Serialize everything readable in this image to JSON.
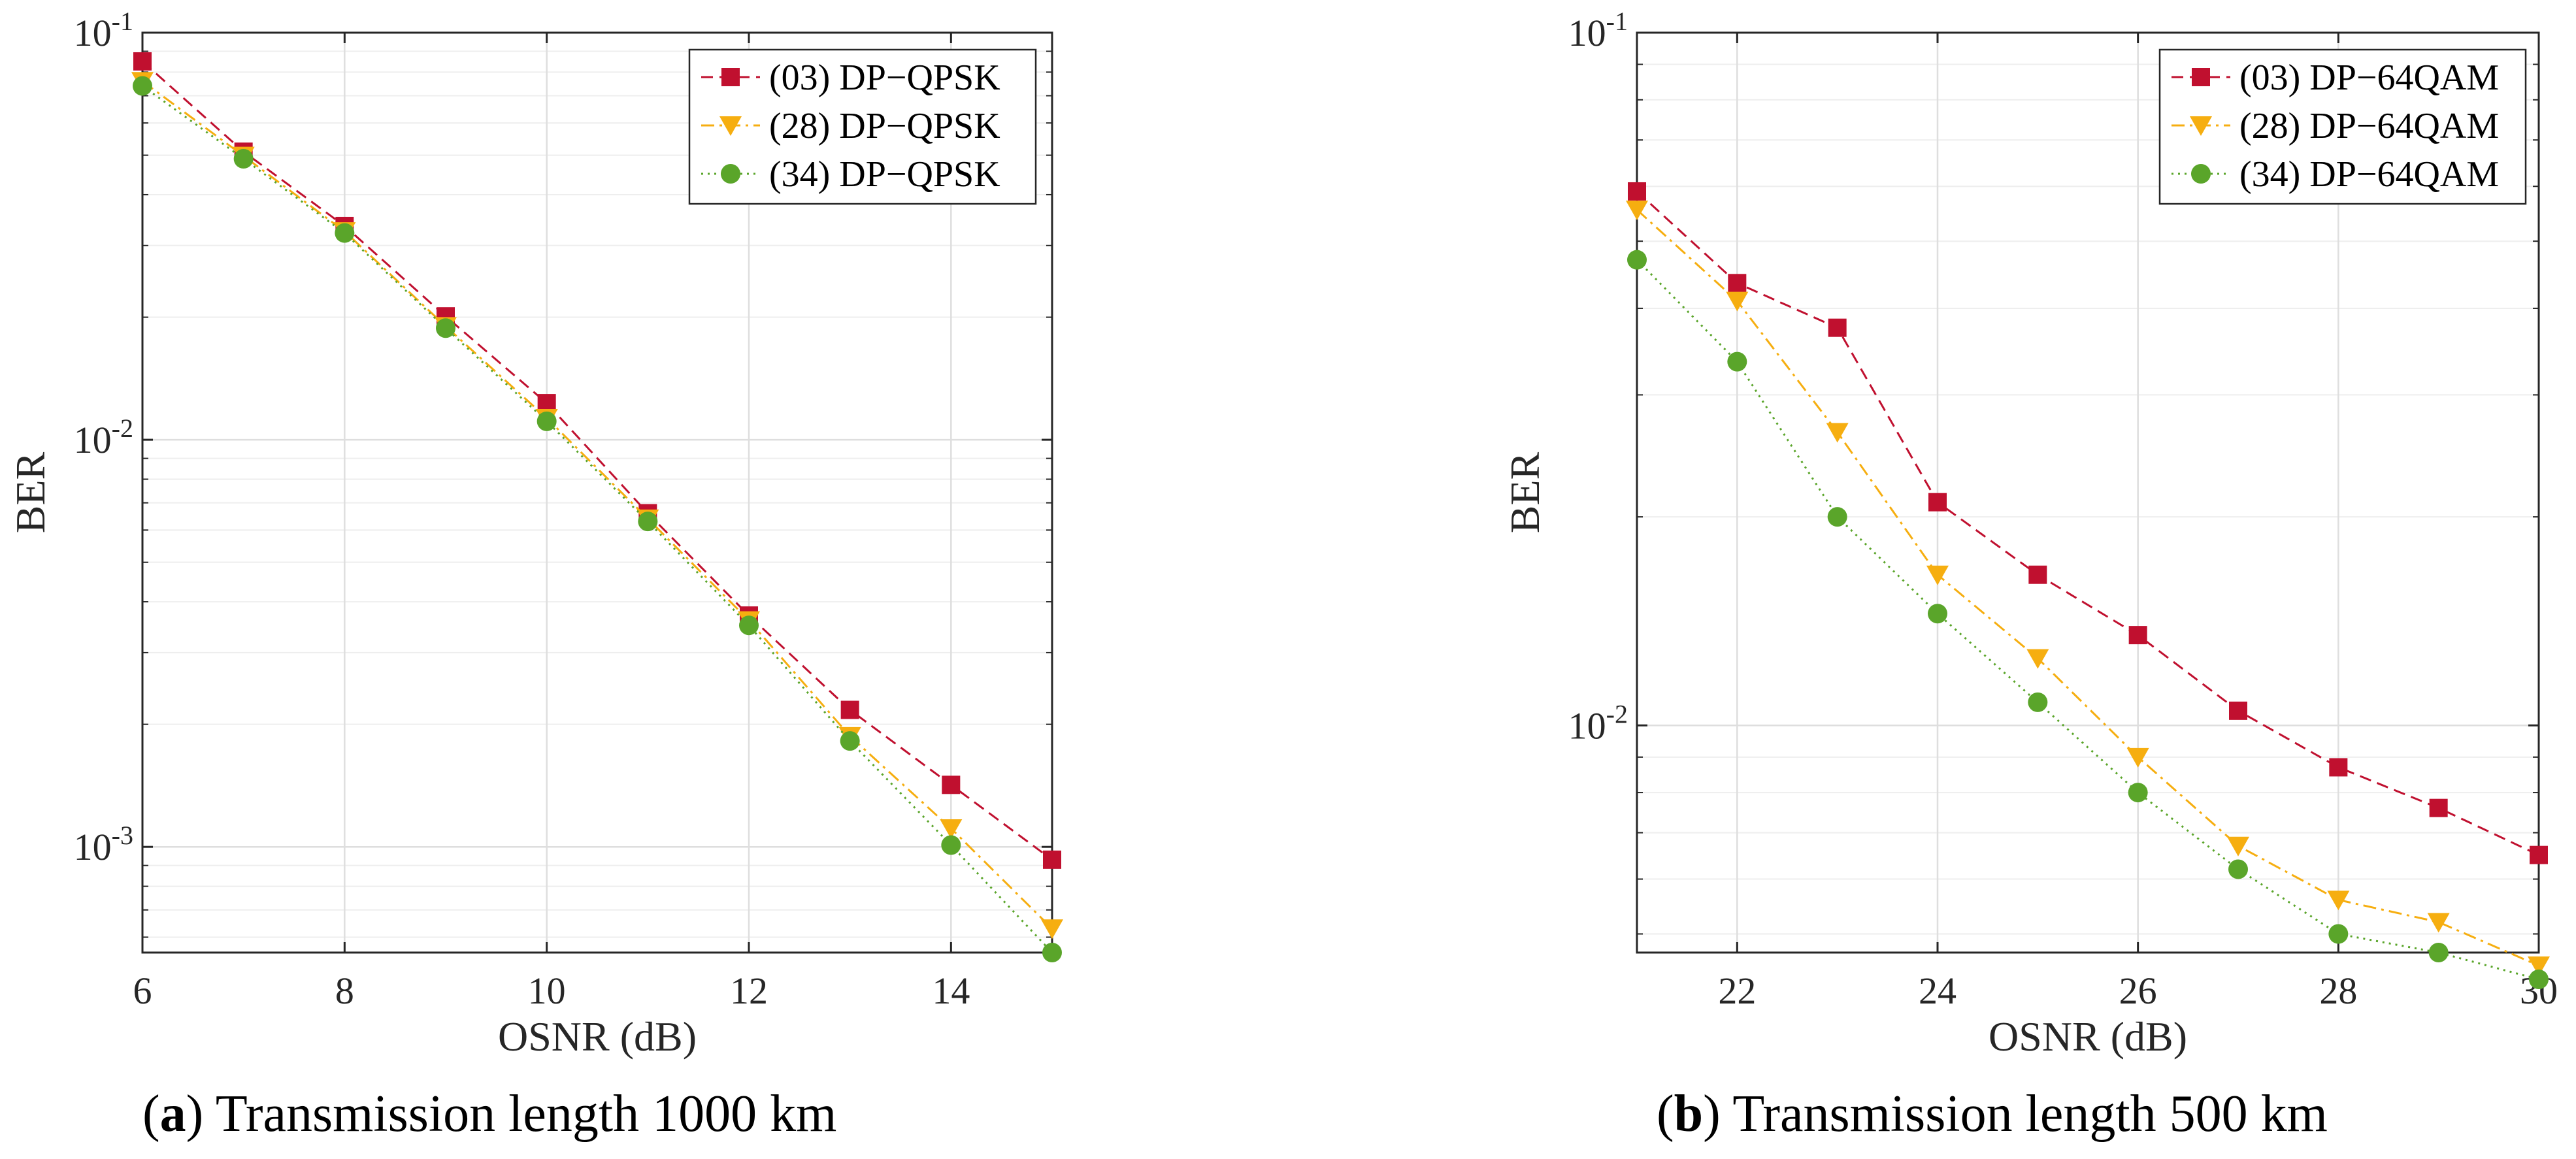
{
  "chart_data": [
    {
      "type": "line",
      "panel_label": "a",
      "caption": "Transmission length 1000 km",
      "xlabel": "OSNR (dB)",
      "ylabel": "BER",
      "yscale": "log",
      "xlim": [
        6,
        15
      ],
      "ylim": [
        0.00055,
        0.1
      ],
      "xticks": [
        6,
        8,
        10,
        12,
        14
      ],
      "yticks": [
        {
          "value": 0.1,
          "base": "10",
          "exp": "-1"
        },
        {
          "value": 0.01,
          "base": "10",
          "exp": "-2"
        },
        {
          "value": 0.001,
          "base": "10",
          "exp": "-3"
        }
      ],
      "grid": true,
      "legend_position": "top-right",
      "series": [
        {
          "name": "(03) DP−QPSK",
          "color": "#C0102F",
          "marker": "square",
          "dash": "dashed",
          "x": [
            6,
            7,
            8,
            9,
            10,
            11,
            12,
            13,
            14,
            15
          ],
          "y": [
            0.085,
            0.051,
            0.0335,
            0.0201,
            0.0123,
            0.0066,
            0.0037,
            0.00217,
            0.00142,
            0.00093
          ]
        },
        {
          "name": "(28) DP−QPSK",
          "color": "#F6AE10",
          "marker": "triangle-down",
          "dash": "dashdot",
          "x": [
            6,
            7,
            8,
            9,
            10,
            11,
            12,
            13,
            14,
            15
          ],
          "y": [
            0.076,
            0.0498,
            0.0325,
            0.019,
            0.0113,
            0.0064,
            0.0036,
            0.00187,
            0.00111,
            0.00063
          ]
        },
        {
          "name": "(34) DP−QPSK",
          "color": "#5AA52A",
          "marker": "circle",
          "dash": "dotted",
          "x": [
            6,
            7,
            8,
            9,
            10,
            11,
            12,
            13,
            14,
            15
          ],
          "y": [
            0.074,
            0.049,
            0.0322,
            0.0188,
            0.0111,
            0.0063,
            0.0035,
            0.00182,
            0.00101,
            0.00055
          ]
        }
      ]
    },
    {
      "type": "line",
      "panel_label": "b",
      "caption": "Transmission length 500 km",
      "xlabel": "OSNR (dB)",
      "ylabel": "BER",
      "yscale": "log",
      "xlim": [
        21,
        30
      ],
      "ylim": [
        0.0047,
        0.1
      ],
      "xticks": [
        22,
        24,
        26,
        28,
        30
      ],
      "yticks": [
        {
          "value": 0.1,
          "base": "10",
          "exp": "-1"
        },
        {
          "value": 0.01,
          "base": "10",
          "exp": "-2"
        }
      ],
      "grid": true,
      "legend_position": "top-right",
      "series": [
        {
          "name": "(03) DP−64QAM",
          "color": "#C0102F",
          "marker": "square",
          "dash": "dashed",
          "x": [
            21,
            22,
            23,
            24,
            25,
            26,
            27,
            28,
            29,
            30
          ],
          "y": [
            0.059,
            0.0435,
            0.0375,
            0.021,
            0.0165,
            0.0135,
            0.0105,
            0.0087,
            0.0076,
            0.0065
          ]
        },
        {
          "name": "(28) DP−64QAM",
          "color": "#F6AE10",
          "marker": "triangle-down",
          "dash": "dashdot",
          "x": [
            21,
            22,
            23,
            24,
            25,
            26,
            27,
            28,
            29,
            30
          ],
          "y": [
            0.0555,
            0.041,
            0.0265,
            0.0165,
            0.0125,
            0.009,
            0.0067,
            0.0056,
            0.0052,
            0.0045
          ]
        },
        {
          "name": "(34) DP−64QAM",
          "color": "#5AA52A",
          "marker": "circle",
          "dash": "dotted",
          "x": [
            21,
            22,
            23,
            24,
            25,
            26,
            27,
            28,
            29,
            30
          ],
          "y": [
            0.047,
            0.0335,
            0.02,
            0.0145,
            0.0108,
            0.008,
            0.0062,
            0.005,
            0.0047,
            0.0043
          ]
        }
      ]
    }
  ]
}
